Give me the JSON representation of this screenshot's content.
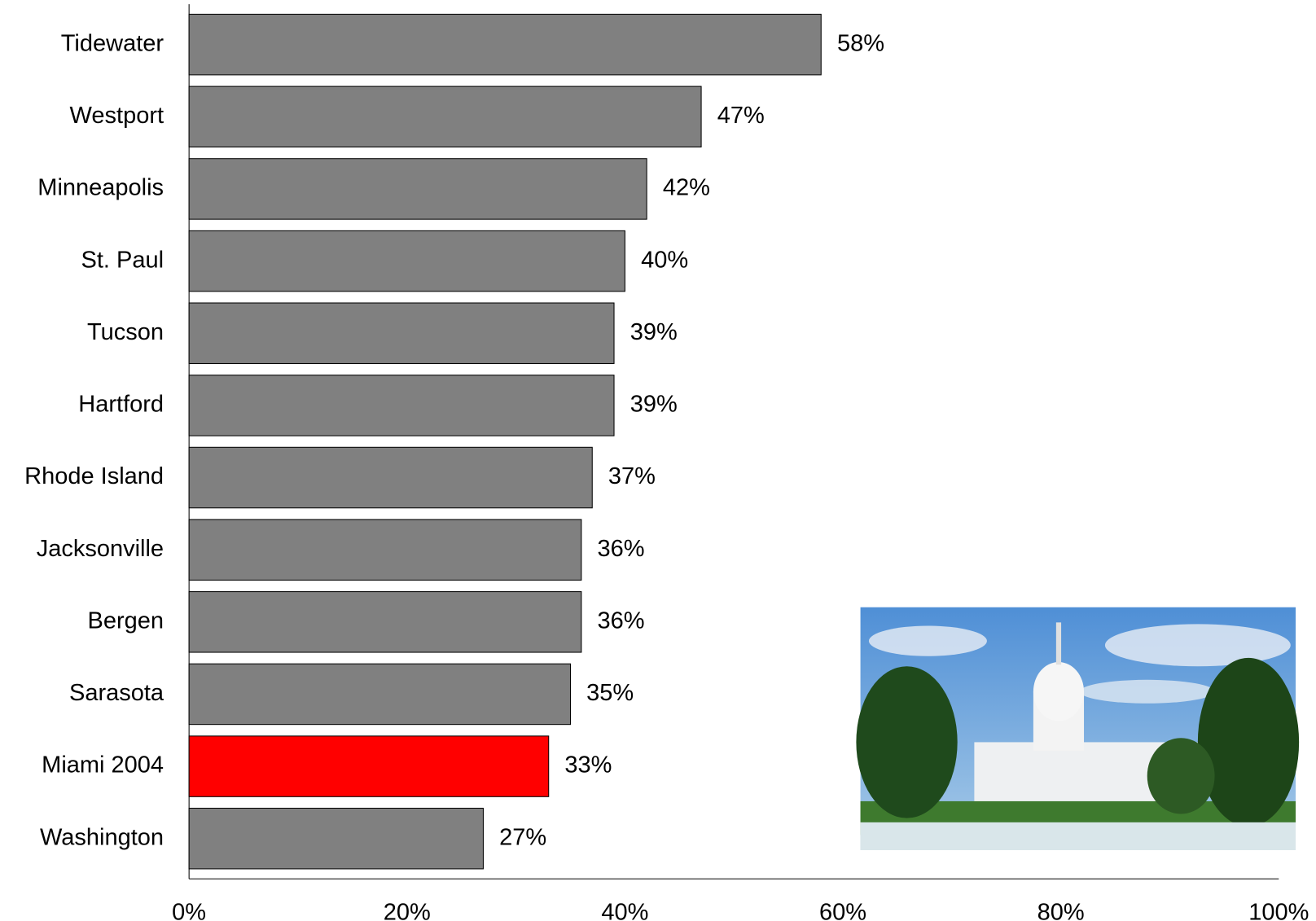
{
  "chart_data": {
    "type": "bar",
    "orientation": "horizontal",
    "categories": [
      "Tidewater",
      "Westport",
      "Minneapolis",
      "St. Paul",
      "Tucson",
      "Hartford",
      "Rhode Island",
      "Jacksonville",
      "Bergen",
      "Sarasota",
      "Miami 2004",
      "Washington"
    ],
    "values": [
      58,
      47,
      42,
      40,
      39,
      39,
      37,
      36,
      36,
      35,
      33,
      27
    ],
    "value_labels": [
      "58%",
      "47%",
      "42%",
      "40%",
      "39%",
      "39%",
      "37%",
      "36%",
      "36%",
      "35%",
      "33%",
      "27%"
    ],
    "colors": [
      "#808080",
      "#808080",
      "#808080",
      "#808080",
      "#808080",
      "#808080",
      "#808080",
      "#808080",
      "#808080",
      "#808080",
      "#ff0000",
      "#808080"
    ],
    "xlim": [
      0,
      100
    ],
    "xticks": [
      {
        "value": 0,
        "label": "0%"
      },
      {
        "value": 20,
        "label": "20%"
      },
      {
        "value": 40,
        "label": "40%"
      },
      {
        "value": 60,
        "label": "60%"
      },
      {
        "value": 80,
        "label": "80%"
      },
      {
        "value": 100,
        "label": "100%"
      }
    ],
    "grid": false
  }
}
